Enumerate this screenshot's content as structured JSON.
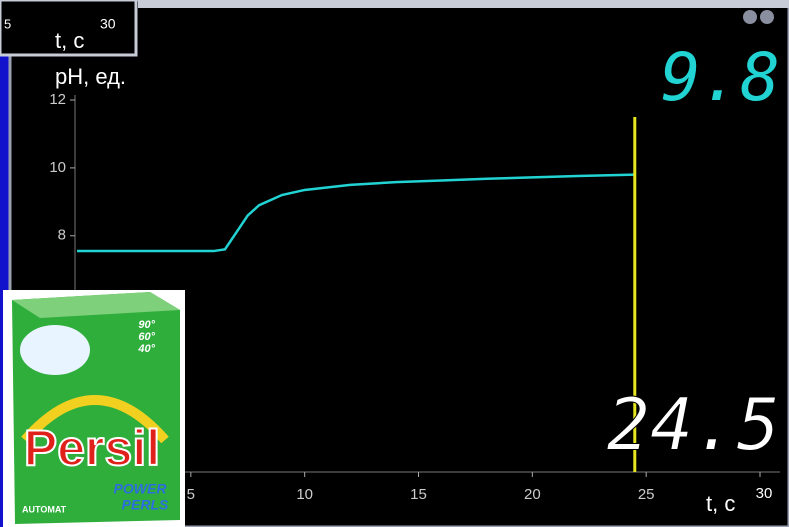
{
  "chart_data": {
    "type": "line",
    "y_label": "pH, ед.",
    "x_label": "t, c",
    "x": [
      0,
      3,
      6,
      6.5,
      7,
      7.5,
      8,
      9,
      10,
      12,
      14,
      16,
      18,
      20,
      22,
      24.5
    ],
    "values": [
      7.55,
      7.55,
      7.55,
      7.6,
      8.1,
      8.6,
      8.9,
      9.2,
      9.35,
      9.5,
      9.58,
      9.63,
      9.68,
      9.72,
      9.76,
      9.8
    ],
    "color": "#22d3d3",
    "xlim": [
      0,
      30
    ],
    "ylim": [
      1.1,
      12
    ],
    "xticks": [
      5,
      10,
      15,
      20,
      25,
      30
    ],
    "yticks": [
      8,
      10,
      12
    ],
    "cursor_color": "#e6e61e",
    "readout_y": 9.8,
    "readout_x": 24.5
  },
  "inset_panel": {
    "tick_left": "5",
    "x_label": "t, c",
    "tick_right": "30"
  },
  "product": {
    "temps": [
      "90°",
      "60°",
      "40°"
    ],
    "brand": "Persil",
    "line1": "POWER",
    "line2": "PERLS",
    "tag": "AUTOMAT"
  }
}
